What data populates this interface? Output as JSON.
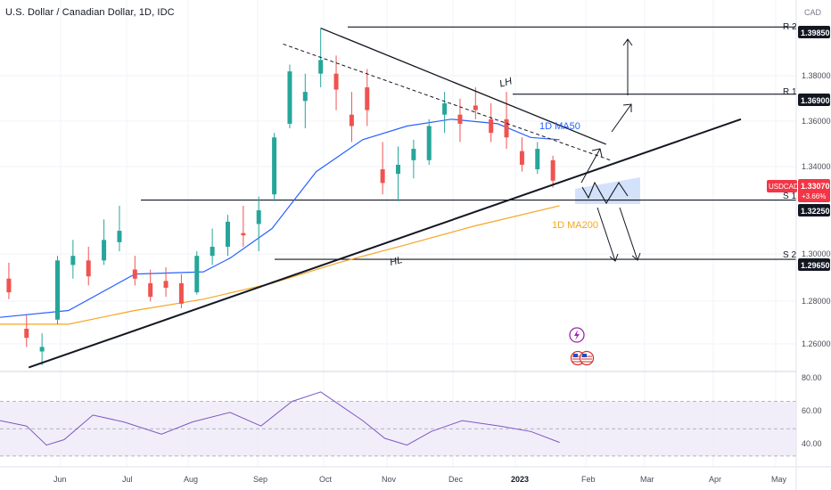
{
  "header": {
    "title": "U.S. Dollar / Canadian Dollar, 1D, IDC"
  },
  "axis": {
    "currency": "CAD",
    "y_ticks": [
      "1.38000",
      "1.36000",
      "1.34000",
      "1.30000",
      "1.28000",
      "1.26000"
    ],
    "rsi_ticks": [
      "80.00",
      "60.00",
      "40.00"
    ],
    "x_ticks": [
      "Jun",
      "Jul",
      "Aug",
      "Sep",
      "Oct",
      "Nov",
      "Dec",
      "2023",
      "Feb",
      "Mar",
      "Apr",
      "May"
    ]
  },
  "price_tag": {
    "symbol": "USDCAD",
    "value": "1.33070",
    "change": "+3.66%"
  },
  "levels": [
    {
      "name": "R 2",
      "value": "1.39850"
    },
    {
      "name": "R 1",
      "value": "1.36900"
    },
    {
      "name": "S 1",
      "value": "1.32250"
    },
    {
      "name": "S 2",
      "value": "1.29650"
    }
  ],
  "annotations": {
    "lh": "LH",
    "hl": "HL",
    "ma50": "1D MA50",
    "ma200": "1D MA200"
  },
  "colors": {
    "up": "#26a69a",
    "down": "#ef5350",
    "ma50": "#2962ff",
    "ma200": "#f5a623",
    "rsi": "#7e57c2",
    "rsi_band": "#ede7f6"
  },
  "chart_data": {
    "type": "candlestick",
    "title": "U.S. Dollar / Canadian Dollar, 1D, IDC",
    "x_range": [
      "2022-05-20",
      "2023-05-15"
    ],
    "y_range": [
      1.248,
      1.408
    ],
    "candles": [
      {
        "date": "2022-05-24",
        "open": 1.288,
        "high": 1.295,
        "low": 1.279,
        "close": 1.282
      },
      {
        "date": "2022-06-01",
        "open": 1.266,
        "high": 1.272,
        "low": 1.258,
        "close": 1.262
      },
      {
        "date": "2022-06-08",
        "open": 1.256,
        "high": 1.264,
        "low": 1.25,
        "close": 1.258
      },
      {
        "date": "2022-06-15",
        "open": 1.27,
        "high": 1.298,
        "low": 1.268,
        "close": 1.296
      },
      {
        "date": "2022-06-22",
        "open": 1.294,
        "high": 1.305,
        "low": 1.288,
        "close": 1.298
      },
      {
        "date": "2022-06-29",
        "open": 1.296,
        "high": 1.302,
        "low": 1.285,
        "close": 1.289
      },
      {
        "date": "2022-07-06",
        "open": 1.296,
        "high": 1.314,
        "low": 1.294,
        "close": 1.305
      },
      {
        "date": "2022-07-13",
        "open": 1.304,
        "high": 1.32,
        "low": 1.3,
        "close": 1.309
      },
      {
        "date": "2022-07-20",
        "open": 1.292,
        "high": 1.298,
        "low": 1.285,
        "close": 1.288
      },
      {
        "date": "2022-07-27",
        "open": 1.286,
        "high": 1.292,
        "low": 1.278,
        "close": 1.28
      },
      {
        "date": "2022-08-03",
        "open": 1.287,
        "high": 1.293,
        "low": 1.28,
        "close": 1.284
      },
      {
        "date": "2022-08-10",
        "open": 1.286,
        "high": 1.29,
        "low": 1.275,
        "close": 1.277
      },
      {
        "date": "2022-08-17",
        "open": 1.282,
        "high": 1.3,
        "low": 1.281,
        "close": 1.298
      },
      {
        "date": "2022-08-24",
        "open": 1.298,
        "high": 1.31,
        "low": 1.294,
        "close": 1.302
      },
      {
        "date": "2022-08-31",
        "open": 1.302,
        "high": 1.316,
        "low": 1.298,
        "close": 1.313
      },
      {
        "date": "2022-09-07",
        "open": 1.308,
        "high": 1.32,
        "low": 1.302,
        "close": 1.307
      },
      {
        "date": "2022-09-14",
        "open": 1.312,
        "high": 1.324,
        "low": 1.3,
        "close": 1.318
      },
      {
        "date": "2022-09-21",
        "open": 1.325,
        "high": 1.352,
        "low": 1.322,
        "close": 1.35
      },
      {
        "date": "2022-09-28",
        "open": 1.356,
        "high": 1.382,
        "low": 1.354,
        "close": 1.379
      },
      {
        "date": "2022-10-05",
        "open": 1.366,
        "high": 1.378,
        "low": 1.354,
        "close": 1.37
      },
      {
        "date": "2022-10-12",
        "open": 1.378,
        "high": 1.398,
        "low": 1.372,
        "close": 1.384
      },
      {
        "date": "2022-10-19",
        "open": 1.378,
        "high": 1.386,
        "low": 1.362,
        "close": 1.371
      },
      {
        "date": "2022-10-26",
        "open": 1.36,
        "high": 1.37,
        "low": 1.348,
        "close": 1.355
      },
      {
        "date": "2022-11-02",
        "open": 1.372,
        "high": 1.38,
        "low": 1.355,
        "close": 1.362
      },
      {
        "date": "2022-11-09",
        "open": 1.336,
        "high": 1.348,
        "low": 1.325,
        "close": 1.33
      },
      {
        "date": "2022-11-16",
        "open": 1.334,
        "high": 1.346,
        "low": 1.322,
        "close": 1.338
      },
      {
        "date": "2022-11-23",
        "open": 1.34,
        "high": 1.349,
        "low": 1.332,
        "close": 1.345
      },
      {
        "date": "2022-11-30",
        "open": 1.34,
        "high": 1.358,
        "low": 1.338,
        "close": 1.355
      },
      {
        "date": "2022-12-07",
        "open": 1.36,
        "high": 1.37,
        "low": 1.352,
        "close": 1.365
      },
      {
        "date": "2022-12-14",
        "open": 1.36,
        "high": 1.367,
        "low": 1.348,
        "close": 1.356
      },
      {
        "date": "2022-12-21",
        "open": 1.364,
        "high": 1.372,
        "low": 1.358,
        "close": 1.362
      },
      {
        "date": "2022-12-28",
        "open": 1.358,
        "high": 1.365,
        "low": 1.348,
        "close": 1.352
      },
      {
        "date": "2023-01-04",
        "open": 1.358,
        "high": 1.37,
        "low": 1.345,
        "close": 1.35
      },
      {
        "date": "2023-01-11",
        "open": 1.344,
        "high": 1.35,
        "low": 1.335,
        "close": 1.338
      },
      {
        "date": "2023-01-18",
        "open": 1.336,
        "high": 1.348,
        "low": 1.334,
        "close": 1.345
      },
      {
        "date": "2023-01-25",
        "open": 1.34,
        "high": 1.342,
        "low": 1.328,
        "close": 1.331
      }
    ],
    "series": [
      {
        "name": "1D MA50",
        "type": "line",
        "x": [
          "2022-05-20",
          "2022-06-20",
          "2022-07-20",
          "2022-08-20",
          "2022-09-01",
          "2022-09-20",
          "2022-10-10",
          "2022-10-31",
          "2022-11-20",
          "2022-12-10",
          "2022-12-31",
          "2023-01-15",
          "2023-01-28"
        ],
        "y": [
          1.271,
          1.274,
          1.29,
          1.291,
          1.297,
          1.31,
          1.335,
          1.349,
          1.355,
          1.358,
          1.356,
          1.35,
          1.349
        ]
      },
      {
        "name": "1D MA200",
        "type": "line",
        "x": [
          "2022-05-20",
          "2022-06-20",
          "2022-07-20",
          "2022-08-20",
          "2022-09-20",
          "2022-10-20",
          "2022-11-20",
          "2022-12-20",
          "2023-01-28"
        ],
        "y": [
          1.268,
          1.268,
          1.274,
          1.279,
          1.286,
          1.295,
          1.303,
          1.311,
          1.32
        ]
      },
      {
        "name": "RSI",
        "type": "line",
        "x": [
          "2022-05-20",
          "2022-06-01",
          "2022-06-10",
          "2022-06-18",
          "2022-07-01",
          "2022-07-15",
          "2022-08-01",
          "2022-08-15",
          "2022-09-01",
          "2022-09-15",
          "2022-09-29",
          "2022-10-12",
          "2022-10-31",
          "2022-11-10",
          "2022-11-20",
          "2022-12-01",
          "2022-12-15",
          "2023-01-01",
          "2023-01-15",
          "2023-01-28"
        ],
        "y": [
          56,
          52,
          38,
          42,
          60,
          55,
          46,
          55,
          62,
          52,
          70,
          77,
          56,
          43,
          38,
          48,
          56,
          52,
          48,
          40
        ]
      }
    ],
    "rsi_range": [
      26,
      90
    ],
    "rsi_band": [
      30,
      70
    ],
    "lines": [
      {
        "name": "lh-line",
        "from": {
          "x": "2022-10-12",
          "y": 1.398
        },
        "to": {
          "x": "2023-02-18",
          "y": 1.347
        }
      },
      {
        "name": "hl-line",
        "from": {
          "x": "2022-06-02",
          "y": 1.249
        },
        "to": {
          "x": "2023-04-20",
          "y": 1.358
        }
      },
      {
        "name": "dashed-trendline",
        "from": {
          "x": "2022-09-25",
          "y": 1.391
        },
        "to": {
          "x": "2023-02-20",
          "y": 1.34
        }
      }
    ]
  }
}
